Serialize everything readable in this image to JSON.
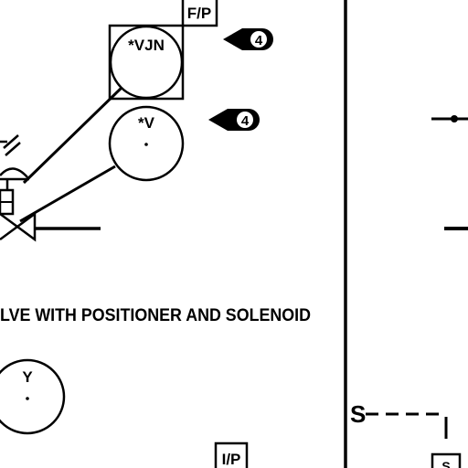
{
  "instruments": {
    "fp": "F/P",
    "vjn": "*VJN",
    "v": "*V",
    "y": "Y",
    "ip": "I/P"
  },
  "notes": {
    "note_a": "4",
    "note_b": "4"
  },
  "caption": "LVE WITH POSITIONER AND SOLENOID",
  "solenoid_tag": "S",
  "corner_tag": "S"
}
